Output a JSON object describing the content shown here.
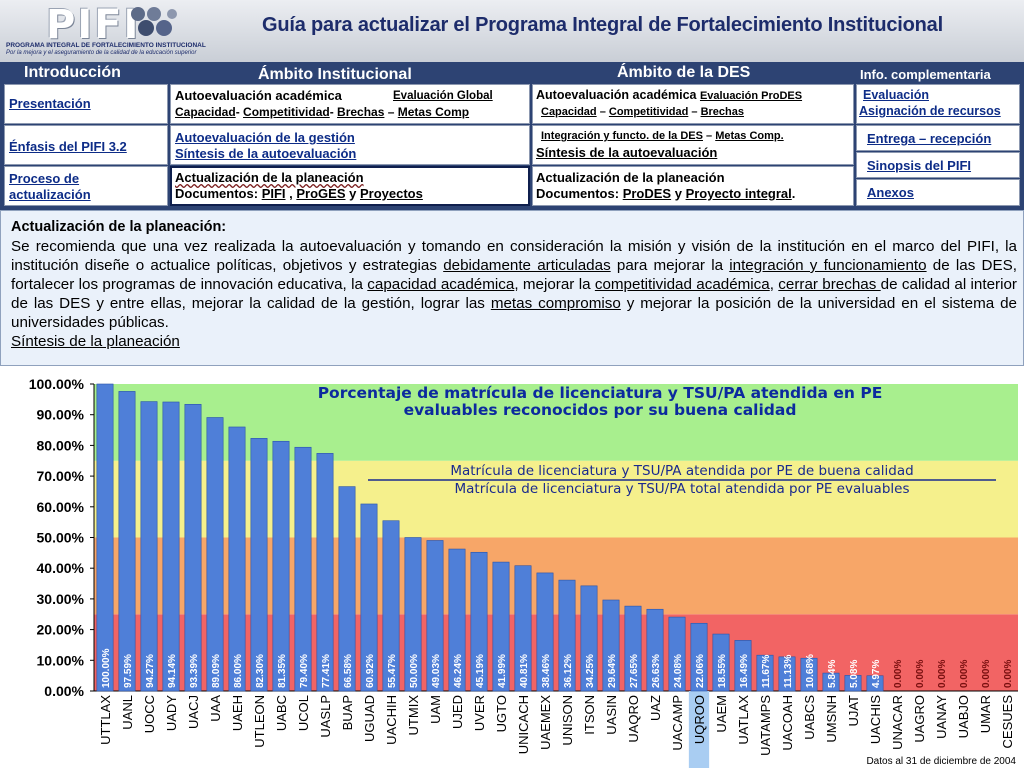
{
  "header": {
    "logo_text": "PIFI",
    "logo_line1": "PROGRAMA INTEGRAL DE FORTALECIMIENTO INSTITUCIONAL",
    "logo_line2": "Por la mejora y el aseguramiento de la calidad de la educación superior",
    "title": "Guía para actualizar el Programa Integral de Fortalecimiento Institucional"
  },
  "nav": {
    "intro_header": "Introducción",
    "inst_header": "Ámbito Institucional",
    "des_header": "Ámbito de la DES",
    "info_header": "Info. complementaria",
    "col1": {
      "presentacion": "Presentación",
      "enfasis": "Énfasis del PIFI 3.2",
      "proceso_1": "Proceso de",
      "proceso_2": "actualización"
    },
    "col2": {
      "autoeval": "Autoevaluación académica",
      "eval_global": "Evaluación Global",
      "capacidad": "Capacidad",
      "competitividad": "Competitividad",
      "brechas": "Brechas",
      "metas": "Metas Comp",
      "autoeval_gestion": "Autoevaluación de la gestión",
      "sintesis": "Síntesis de la autoevaluación",
      "actualizacion": "Actualización de la planeación",
      "documentos": "Documentos:",
      "pifi": "PIFI",
      "proges": "ProGES",
      "y": "y",
      "proyectos": "Proyectos"
    },
    "col3": {
      "autoeval": "Autoevaluación académica",
      "eval_prodes": "Evaluación ProDES",
      "capacidad": "Capacidad",
      "competitividad": "Competitividad",
      "brechas": "Brechas",
      "integracion": "Integración y functo. de la DES",
      "metas": "Metas Comp.",
      "sintesis": "Síntesis de la autoevaluación",
      "actualizacion": "Actualización de la planeación",
      "documentos": "Documentos:",
      "prodes": "ProDES",
      "y": "y",
      "proyecto": "Proyecto integral",
      "punto": "."
    },
    "col4": {
      "evaluacion": "Evaluación",
      "asignacion": "Asignación de recursos",
      "entrega": "Entrega – recepción",
      "sinopsis": "Sinopsis del PIFI",
      "anexos": "Anexos"
    }
  },
  "desc": {
    "heading": "Actualización de la planeación:",
    "p1": "Se recomienda que una vez realizada la autoevaluación y tomando en consideración la misión y visión de la institución en el marco del PIFI, la institución diseñe o actualice políticas, objetivos y estrategias ",
    "l1": "debidamente articuladas",
    "p2": " para mejorar la ",
    "l2": "integración y funcionamiento",
    "p3": " de las DES, fortalecer los programas de innovación educativa, la ",
    "l3": "capacidad académica",
    "p4": ", mejorar la ",
    "l4": "competitividad académica",
    "p5": ",  ",
    "l5": "cerrar brechas ",
    "p6": "de calidad al interior de las DES y entre ellas, mejorar la calidad de la gestión, lograr las ",
    "l6": "metas compromiso",
    "p7": " y mejorar la posición de la universidad en el sistema de universidades públicas.",
    "link_final": "Síntesis de la planeación"
  },
  "chart_data": {
    "type": "bar",
    "title": "Porcentaje de matrícula de licenciatura y TSU/PA atendida en PE evaluables reconocidos por su buena calidad",
    "title_line1": "Porcentaje de matrícula de licenciatura y TSU/PA atendida en PE",
    "title_line2": "evaluables reconocidos por su buena calidad",
    "ratio_numerator": "Matrícula de licenciatura y TSU/PA atendida por PE de buena calidad",
    "ratio_denominator": "Matrícula de licenciatura y TSU/PA total atendida por PE evaluables",
    "footnote": "Datos al 31 de diciembre de 2004",
    "ylim": [
      0,
      100
    ],
    "yticks": [
      "0.00%",
      "10.00%",
      "20.00%",
      "30.00%",
      "40.00%",
      "50.00%",
      "60.00%",
      "70.00%",
      "80.00%",
      "90.00%",
      "100.00%"
    ],
    "bands": [
      {
        "from": 0,
        "to": 25,
        "color": "#f26464"
      },
      {
        "from": 25,
        "to": 50,
        "color": "#f7a668"
      },
      {
        "from": 50,
        "to": 75,
        "color": "#f5f08c"
      },
      {
        "from": 75,
        "to": 100,
        "color": "#a8ef8e"
      }
    ],
    "bar_color": "#4f7fd8",
    "highlight_category": "UQROO",
    "highlight_color": "#a9cdf2",
    "categories": [
      "UTTLAX",
      "UANL",
      "UOCC",
      "UADY",
      "UACJ",
      "UAA",
      "UAEH",
      "UTLEON",
      "UABC",
      "UCOL",
      "UASLP",
      "BUAP",
      "UGUAD",
      "UACHIH",
      "UTMIX",
      "UAM",
      "UJED",
      "UVER",
      "UGTO",
      "UNICACH",
      "UAEMEX",
      "UNISON",
      "ITSON",
      "UASIN",
      "UAQRO",
      "UAZ",
      "UACAMP",
      "UQROO",
      "UAEM",
      "UATLAX",
      "UATAMPS",
      "UACOAH",
      "UABCS",
      "UMSNH",
      "UJAT",
      "UACHIS",
      "UNACAR",
      "UAGRO",
      "UANAY",
      "UABJO",
      "UMAR",
      "CESUES"
    ],
    "values": [
      100.0,
      97.59,
      94.27,
      94.14,
      93.39,
      89.09,
      86.0,
      82.3,
      81.35,
      79.4,
      77.41,
      66.58,
      60.92,
      55.47,
      50.0,
      49.03,
      46.24,
      45.19,
      41.99,
      40.81,
      38.46,
      36.12,
      34.25,
      29.64,
      27.65,
      26.63,
      24.08,
      22.06,
      18.55,
      16.49,
      11.67,
      11.13,
      10.68,
      5.84,
      5.08,
      4.97,
      0.0,
      0.0,
      0.0,
      0.0,
      0.0,
      0.0
    ],
    "value_labels": [
      "100.00%",
      "97.59%",
      "94.27%",
      "94.14%",
      "93.39%",
      "89.09%",
      "86.00%",
      "82.30%",
      "81.35%",
      "79.40%",
      "77.41%",
      "66.58%",
      "60.92%",
      "55.47%",
      "50.00%",
      "49.03%",
      "46.24%",
      "45.19%",
      "41.99%",
      "40.81%",
      "38.46%",
      "36.12%",
      "34.25%",
      "29.64%",
      "27.65%",
      "26.63%",
      "24.08%",
      "22.06%",
      "18.55%",
      "16.49%",
      "11.67%",
      "11.13%",
      "10.68%",
      "5.84%",
      "5.08%",
      "4.97%",
      "0.00%",
      "0.00%",
      "0.00%",
      "0.00%",
      "0.00%",
      "0.00%"
    ]
  }
}
